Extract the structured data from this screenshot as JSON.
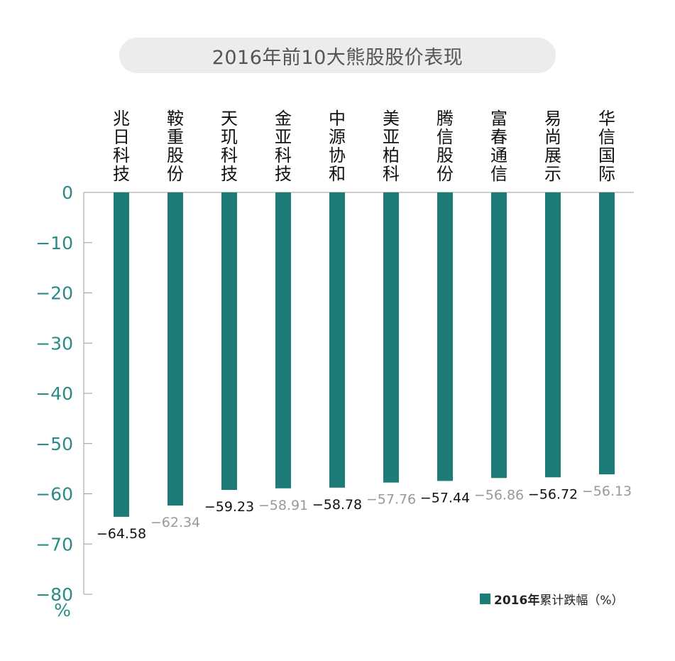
{
  "title": "2016年前10大熊股股价表现",
  "chart_data": {
    "type": "bar",
    "title": "2016年前10大熊股股价表现",
    "categories": [
      "兆日科技",
      "鞍重股份",
      "天玑科技",
      "金亚科技",
      "中源协和",
      "美亚柏科",
      "腾信股份",
      "富春通信",
      "易尚展示",
      "华信国际"
    ],
    "series": [
      {
        "name": "2016年累计跌幅（%）",
        "values": [
          -64.58,
          -62.34,
          -59.23,
          -58.91,
          -58.78,
          -57.76,
          -57.44,
          -56.86,
          -56.72,
          -56.13
        ]
      }
    ],
    "value_labels": [
      "−64.58",
      "−62.34",
      "−59.23",
      "−58.91",
      "−58.78",
      "−57.76",
      "−57.44",
      "−56.86",
      "−56.72",
      "−56.13"
    ],
    "ylim": [
      -80,
      0
    ],
    "yticks": [
      0,
      -10,
      -20,
      -30,
      -40,
      -50,
      -60,
      -70,
      -80
    ],
    "ytick_labels": [
      "0",
      "−10",
      "−20",
      "−30",
      "−40",
      "−50",
      "−60",
      "−70",
      "−80"
    ],
    "ylabel": "%",
    "xlabel": "",
    "legend_position": "bottom-right",
    "grid": false,
    "colors": {
      "bar": "#1e7c78",
      "axis": "#999999",
      "tick_label": "#2a8a86",
      "label_dark": "#111111",
      "label_light": "#999999"
    }
  },
  "legend": {
    "prefix": "2016年",
    "suffix": "累计跌幅（%）"
  }
}
